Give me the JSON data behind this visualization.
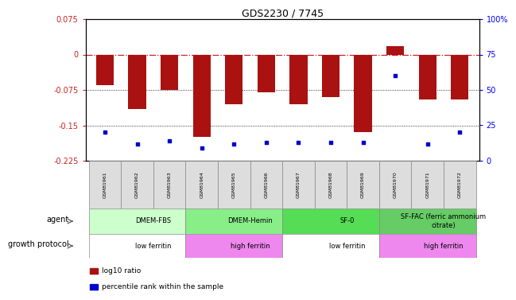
{
  "title": "GDS2230 / 7745",
  "samples": [
    "GSM81961",
    "GSM81962",
    "GSM81963",
    "GSM81964",
    "GSM81965",
    "GSM81966",
    "GSM81967",
    "GSM81968",
    "GSM81969",
    "GSM81970",
    "GSM81971",
    "GSM81972"
  ],
  "log10_ratio": [
    -0.065,
    -0.115,
    -0.075,
    -0.175,
    -0.105,
    -0.08,
    -0.105,
    -0.09,
    -0.165,
    0.018,
    -0.095,
    -0.095
  ],
  "percentile_rank": [
    20,
    12,
    14,
    9,
    12,
    13,
    13,
    13,
    13,
    60,
    12,
    20
  ],
  "ylim": [
    -0.225,
    0.075
  ],
  "y_ticks_left": [
    0.075,
    0,
    -0.075,
    -0.15,
    -0.225
  ],
  "y_ticks_right": [
    100,
    75,
    50,
    25,
    0
  ],
  "bar_color": "#aa1111",
  "dot_color": "#0000cc",
  "agent_row": {
    "groups": [
      {
        "label": "DMEM-FBS",
        "start": 0,
        "end": 3,
        "color": "#ccffcc"
      },
      {
        "label": "DMEM-Hemin",
        "start": 3,
        "end": 6,
        "color": "#88ee88"
      },
      {
        "label": "SF-0",
        "start": 6,
        "end": 9,
        "color": "#55dd55"
      },
      {
        "label": "SF-FAC (ferric ammonium\ncitrate)",
        "start": 9,
        "end": 12,
        "color": "#66cc66"
      }
    ]
  },
  "growth_row": {
    "groups": [
      {
        "label": "low ferritin",
        "start": 0,
        "end": 3,
        "color": "#ffffff"
      },
      {
        "label": "high ferritin",
        "start": 3,
        "end": 6,
        "color": "#ee88ee"
      },
      {
        "label": "low ferritin",
        "start": 6,
        "end": 9,
        "color": "#ffffff"
      },
      {
        "label": "high ferritin",
        "start": 9,
        "end": 12,
        "color": "#ee88ee"
      }
    ]
  },
  "legend_items": [
    {
      "color": "#aa1111",
      "label": "log10 ratio"
    },
    {
      "color": "#0000cc",
      "label": "percentile rank within the sample"
    }
  ]
}
